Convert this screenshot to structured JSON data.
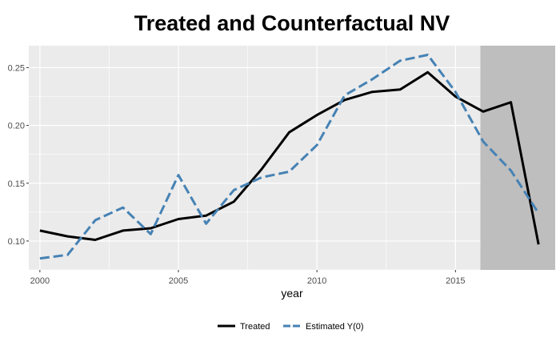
{
  "chart_data": {
    "type": "line",
    "title": "Treated and Counterfactual NV",
    "xlabel": "year",
    "ylabel": "",
    "xlim": [
      1999.6,
      2018.6
    ],
    "ylim": [
      0.075,
      0.269
    ],
    "x_ticks": [
      2000,
      2005,
      2010,
      2015
    ],
    "x_tick_labels": [
      "2000",
      "2005",
      "2010",
      "2015"
    ],
    "y_ticks": [
      0.1,
      0.15,
      0.2,
      0.25
    ],
    "y_tick_labels": [
      "0.10",
      "0.15",
      "0.20",
      "0.25"
    ],
    "grid": true,
    "legend_position": "bottom",
    "treatment_shading": {
      "from": 2015.9,
      "to": 2018.6,
      "color": "#bebebe"
    },
    "x": [
      2000,
      2001,
      2002,
      2003,
      2004,
      2005,
      2006,
      2007,
      2008,
      2009,
      2010,
      2011,
      2012,
      2013,
      2014,
      2015,
      2016,
      2017,
      2018
    ],
    "series": [
      {
        "name": "Treated",
        "color": "#000000",
        "dash": "solid",
        "values": [
          0.109,
          0.104,
          0.101,
          0.109,
          0.111,
          0.119,
          0.122,
          0.134,
          0.162,
          0.194,
          0.209,
          0.222,
          0.229,
          0.231,
          0.246,
          0.225,
          0.212,
          0.22,
          0.097
        ]
      },
      {
        "name": "Estimated Y(0)",
        "color": "#4682b4",
        "dash": "dashed",
        "values": [
          0.085,
          0.088,
          0.118,
          0.129,
          0.106,
          0.157,
          0.115,
          0.144,
          0.155,
          0.16,
          0.183,
          0.226,
          0.24,
          0.256,
          0.261,
          0.229,
          0.186,
          0.161,
          0.124
        ]
      }
    ]
  }
}
